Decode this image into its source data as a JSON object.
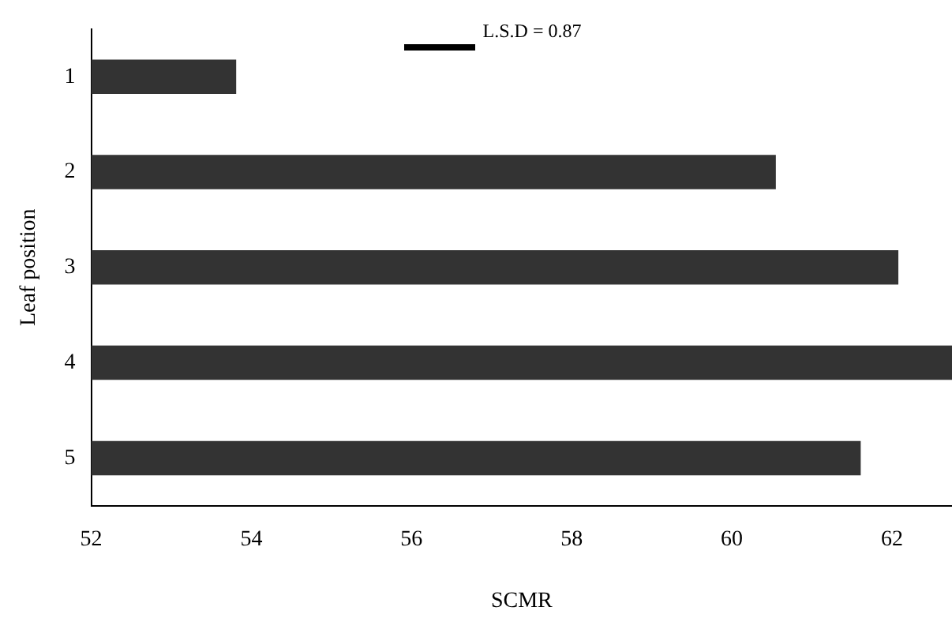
{
  "chart_data": {
    "type": "bar",
    "orientation": "horizontal",
    "categories": [
      "1",
      "2",
      "3",
      "4",
      "5"
    ],
    "values": [
      53.81,
      60.55,
      62.08,
      62.75,
      61.61
    ],
    "color": "#333333",
    "xlim": [
      52,
      62.75
    ],
    "xticks": [
      52,
      54,
      56,
      58,
      60,
      62
    ],
    "xlabel": "SCMR",
    "ylabel": "Leaf position",
    "grid": false,
    "legend": false,
    "annotations": [
      "L.S.D = 0.87"
    ]
  }
}
